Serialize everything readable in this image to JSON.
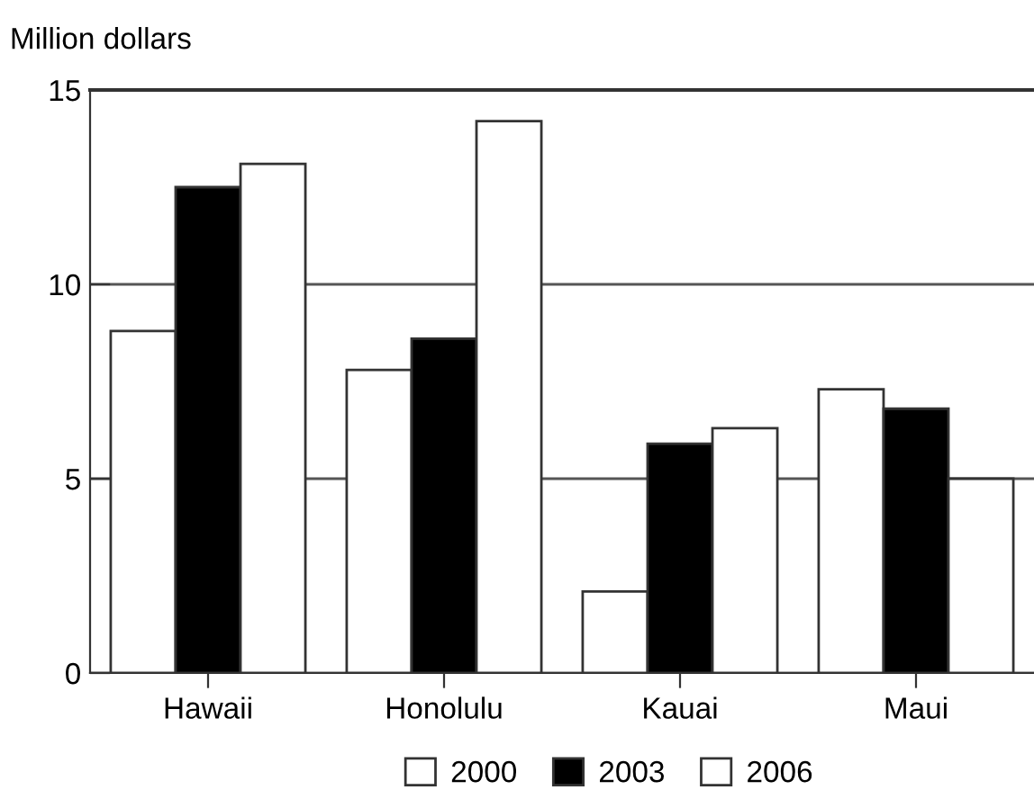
{
  "chart_data": {
    "type": "bar",
    "ylabel": "Million dollars",
    "categories": [
      "Hawaii",
      "Honolulu",
      "Kauai",
      "Maui"
    ],
    "series": [
      {
        "name": "2000",
        "color": "#ffffff",
        "values": [
          8.8,
          7.8,
          2.1,
          7.3
        ]
      },
      {
        "name": "2003",
        "color": "#000000",
        "values": [
          12.5,
          8.6,
          5.9,
          6.8
        ]
      },
      {
        "name": "2006",
        "color": "#ffffff",
        "values": [
          13.1,
          14.2,
          6.3,
          5.0
        ]
      }
    ],
    "ylim": [
      0,
      15
    ],
    "yticks": [
      0,
      5,
      10,
      15
    ],
    "grid": "y",
    "legend": "bottom"
  }
}
